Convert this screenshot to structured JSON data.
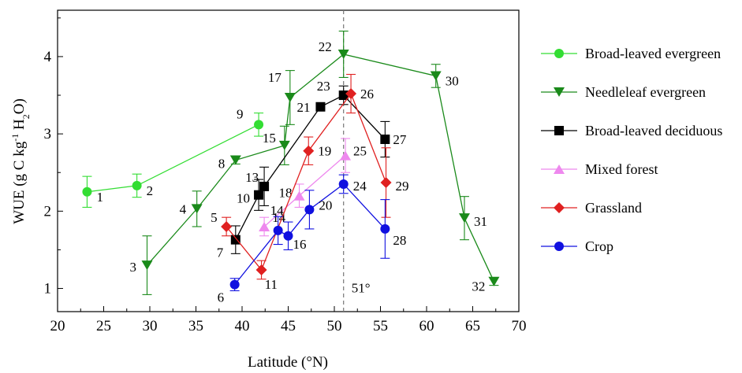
{
  "chart_data": {
    "type": "scatter",
    "xlabel": "Latitude (°N)",
    "ylabel": "WUE (g C kg-1 H2O)",
    "xlim": [
      20,
      70
    ],
    "ylim": [
      0.7,
      4.6
    ],
    "xticks": [
      20,
      25,
      30,
      35,
      40,
      45,
      50,
      55,
      60,
      65,
      70
    ],
    "yticks": [
      1,
      2,
      3,
      4
    ],
    "grid": false,
    "legend": "right",
    "reference_line": {
      "x": 51,
      "label": "51°",
      "style": "dashed"
    },
    "series": [
      {
        "name": "Broad-leaved evergreen",
        "color": "#33dd33",
        "marker": "circle",
        "points": [
          {
            "x": 23.2,
            "y": 2.25,
            "err": 0.2,
            "label": "1"
          },
          {
            "x": 28.6,
            "y": 2.33,
            "err": 0.15,
            "label": "2"
          },
          {
            "x": 41.8,
            "y": 3.12,
            "err": 0.15,
            "label": "9"
          }
        ]
      },
      {
        "name": "Needleleaf evergreen",
        "color": "#1a8a1a",
        "marker": "triangle-down",
        "points": [
          {
            "x": 29.7,
            "y": 1.3,
            "err": 0.38,
            "label": "3"
          },
          {
            "x": 35.1,
            "y": 2.03,
            "err": 0.23,
            "label": "4"
          },
          {
            "x": 39.3,
            "y": 2.66,
            "err": 0.05,
            "label": "8"
          },
          {
            "x": 44.6,
            "y": 2.85,
            "err": 0.25,
            "label": "15"
          },
          {
            "x": 45.2,
            "y": 3.47,
            "err": 0.35,
            "label": "17"
          },
          {
            "x": 51.0,
            "y": 4.03,
            "err": 0.3,
            "label": "22"
          },
          {
            "x": 61.0,
            "y": 3.75,
            "err": 0.15,
            "label": "30"
          },
          {
            "x": 64.1,
            "y": 1.91,
            "err": 0.28,
            "label": "31"
          },
          {
            "x": 67.3,
            "y": 1.09,
            "err": 0.05,
            "label": "32"
          }
        ]
      },
      {
        "name": "Broad-leaved deciduous",
        "color": "#000000",
        "marker": "square",
        "points": [
          {
            "x": 39.3,
            "y": 1.63,
            "err": 0.18,
            "label": "7"
          },
          {
            "x": 41.8,
            "y": 2.21,
            "err": 0.2,
            "label": "10"
          },
          {
            "x": 42.4,
            "y": 2.32,
            "err": 0.25,
            "label": "13"
          },
          {
            "x": 48.5,
            "y": 3.35,
            "err": 0.0,
            "label": "21"
          },
          {
            "x": 51.0,
            "y": 3.5,
            "err": 0.12,
            "label": "23"
          },
          {
            "x": 55.5,
            "y": 2.93,
            "err": 0.23,
            "label": "27"
          }
        ]
      },
      {
        "name": "Mixed forest",
        "color": "#ee88ee",
        "marker": "triangle-up",
        "points": [
          {
            "x": 42.4,
            "y": 1.8,
            "err": 0.12,
            "label": "14"
          },
          {
            "x": 46.2,
            "y": 2.2,
            "err": 0.15,
            "label": "18"
          },
          {
            "x": 51.2,
            "y": 2.72,
            "err": 0.22,
            "label": "25"
          }
        ]
      },
      {
        "name": "Grassland",
        "color": "#e02020",
        "marker": "diamond",
        "points": [
          {
            "x": 38.3,
            "y": 1.8,
            "err": 0.12,
            "label": "5"
          },
          {
            "x": 42.1,
            "y": 1.24,
            "err": 0.12,
            "label": "11"
          },
          {
            "x": 47.2,
            "y": 2.78,
            "err": 0.18,
            "label": "19"
          },
          {
            "x": 51.8,
            "y": 3.52,
            "err": 0.25,
            "label": "26"
          },
          {
            "x": 55.6,
            "y": 2.37,
            "err": 0.45,
            "label": "29"
          }
        ]
      },
      {
        "name": "Crop",
        "color": "#1010e0",
        "marker": "circle",
        "points": [
          {
            "x": 39.2,
            "y": 1.05,
            "err": 0.08,
            "label": "6"
          },
          {
            "x": 43.9,
            "y": 1.75,
            "err": 0.18,
            "label": "14"
          },
          {
            "x": 45.0,
            "y": 1.68,
            "err": 0.18,
            "label": "16"
          },
          {
            "x": 47.3,
            "y": 2.02,
            "err": 0.25,
            "label": "20"
          },
          {
            "x": 51.0,
            "y": 2.35,
            "err": 0.12,
            "label": "24"
          },
          {
            "x": 55.5,
            "y": 1.77,
            "err": 0.38,
            "label": "28"
          }
        ]
      }
    ]
  }
}
